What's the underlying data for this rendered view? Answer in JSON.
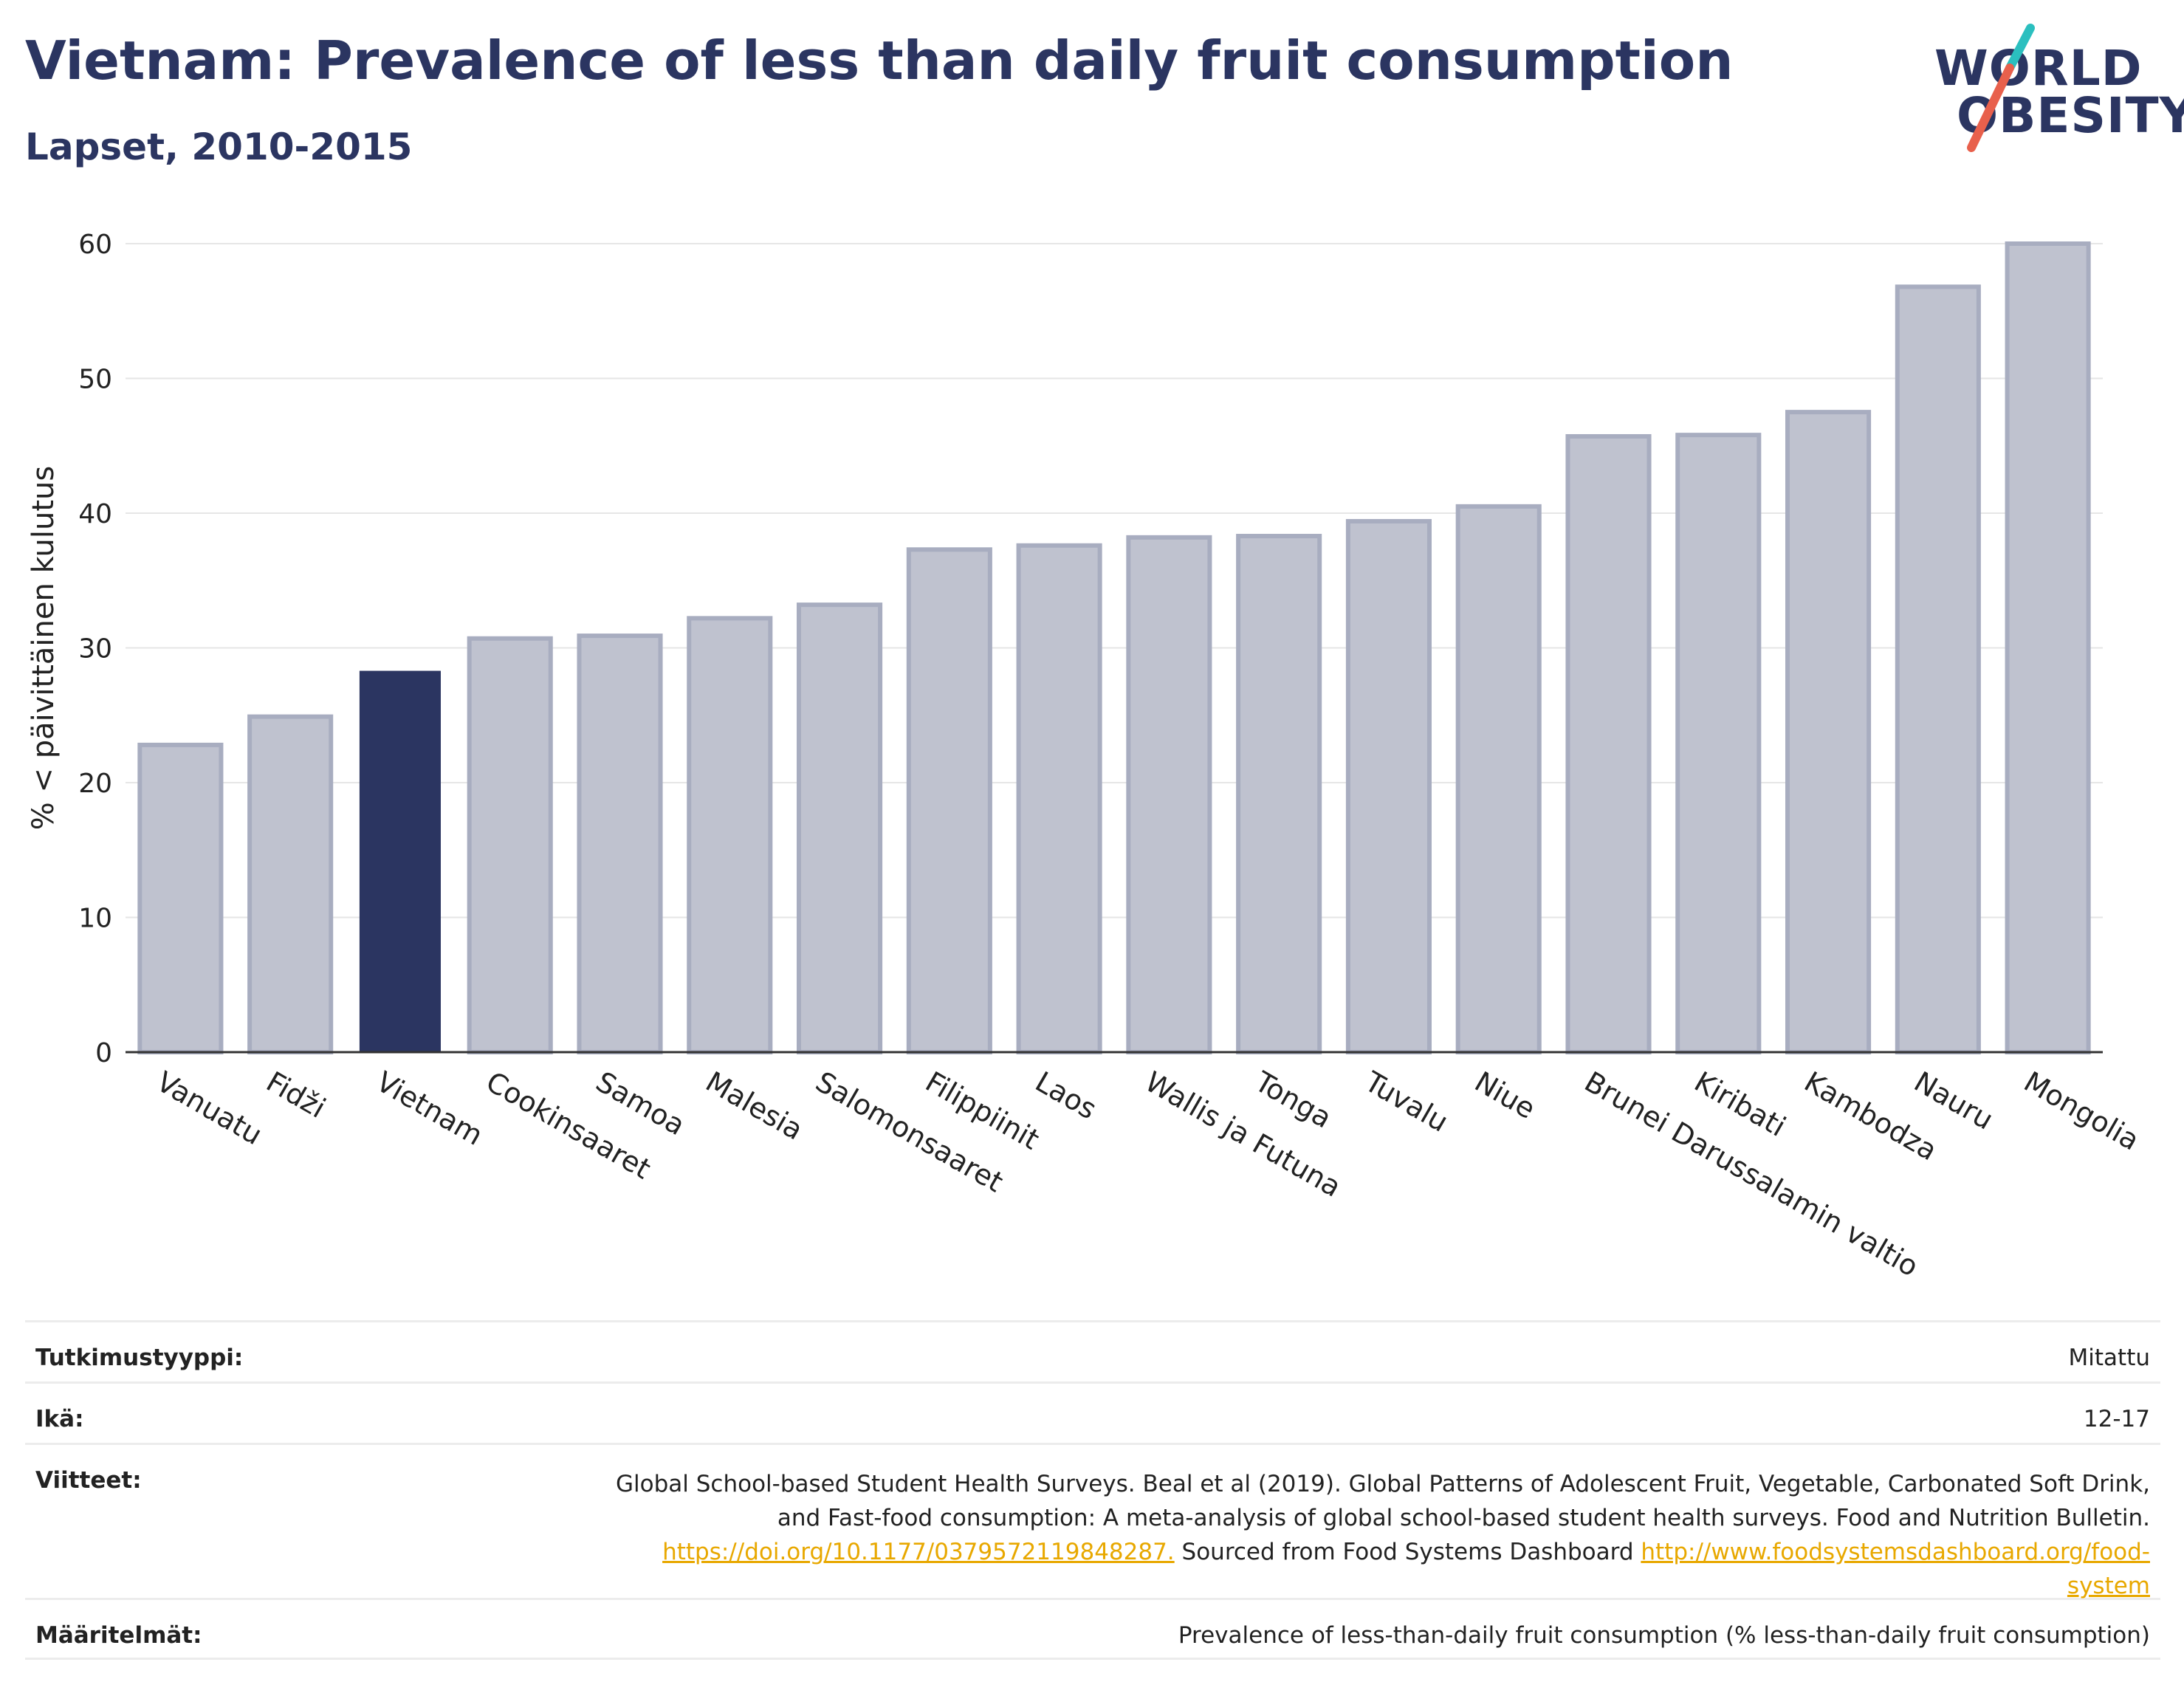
{
  "header": {
    "title": "Vietnam: Prevalence of less than daily fruit consumption",
    "subtitle": "Lapset, 2010-2015"
  },
  "logo": {
    "line1": "WORLD",
    "line2": "OBESITY",
    "colors": {
      "text": "#2b3561",
      "slash_top": "#2bbfbf",
      "slash_bottom": "#e8604c"
    }
  },
  "colors": {
    "highlight_bar": "#2b3561",
    "bar_fill": "#bfc2cf",
    "bar_stroke": "#a8adc0",
    "grid": "#e6e6e6",
    "link": "#e8a800"
  },
  "chart_data": {
    "type": "bar",
    "ylabel": "% < päivittäinen kulutus",
    "ylim": [
      0,
      60
    ],
    "yticks": [
      "0",
      "10",
      "20",
      "30",
      "40",
      "50",
      "60"
    ],
    "grid": true,
    "highlight": "Vietnam",
    "categories": [
      "Vanuatu",
      "Fidži",
      "Vietnam",
      "Cookinsaaret",
      "Samoa",
      "Malesia",
      "Salomonsaaret",
      "Filippiinit",
      "Laos",
      "Wallis ja Futuna",
      "Tonga",
      "Tuvalu",
      "Niue",
      "Brunei Darussalamin valtio",
      "Kiribati",
      "Kambodza",
      "Nauru",
      "Mongolia"
    ],
    "values": [
      22.8,
      24.9,
      28.3,
      30.7,
      30.9,
      32.2,
      33.2,
      37.3,
      37.6,
      38.2,
      38.3,
      39.4,
      40.5,
      45.7,
      45.8,
      47.5,
      56.8,
      60.0
    ]
  },
  "info": {
    "study_type": {
      "label": "Tutkimustyyppi:",
      "value": "Mitattu"
    },
    "age": {
      "label": "Ikä:",
      "value": "12-17"
    },
    "references": {
      "label": "Viitteet:",
      "line1": "Global School-based Student Health Surveys. Beal et al (2019). Global Patterns of Adolescent Fruit, Vegetable, Carbonated Soft Drink,",
      "line2": "and Fast-food consumption: A meta-analysis of global school-based student health surveys. Food and Nutrition Bulletin.",
      "link1": "https://doi.org/10.1177/0379572119848287.",
      "mid_text": " Sourced from Food Systems Dashboard ",
      "link2a": "http://www.foodsystemsdashboard.org/food-",
      "link2b": "system"
    },
    "definitions": {
      "label": "Määritelmät:",
      "value": "Prevalence of less-than-daily fruit consumption (% less-than-daily fruit consumption)"
    }
  }
}
